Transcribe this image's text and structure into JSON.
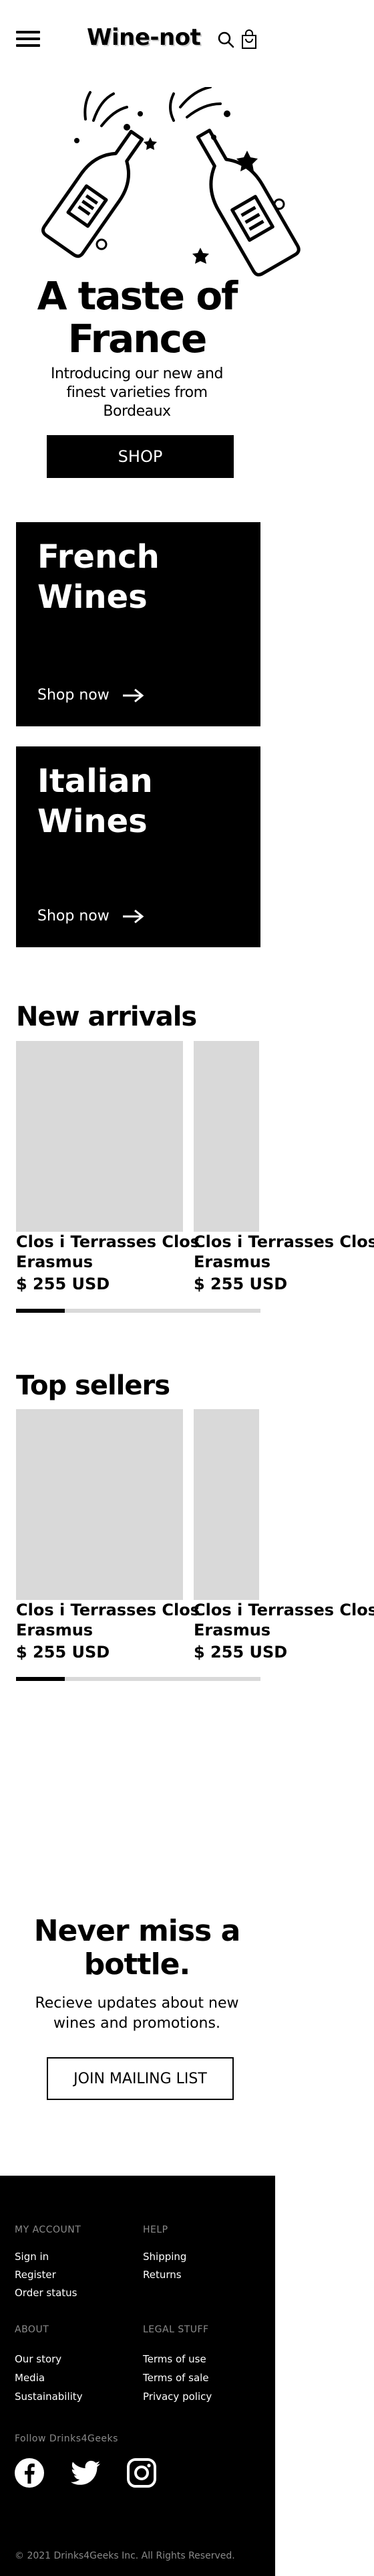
{
  "header": {
    "brand": "Wine-not",
    "menu_icon": "hamburger-menu-icon",
    "search_icon": "search-icon",
    "cart_icon": "shopping-bag-icon"
  },
  "hero": {
    "title_line1": "A taste of",
    "title_line2": "France",
    "subtitle": "Introducing our new and finest varieties from Bordeaux",
    "button": "SHOP"
  },
  "categories": [
    {
      "title_line1": "French",
      "title_line2": "Wines",
      "link": "Shop now"
    },
    {
      "title_line1": "Italian",
      "title_line2": "Wines",
      "link": "Shop now"
    }
  ],
  "new_arrivals": {
    "title": "New arrivals",
    "products": [
      {
        "name_line1": "Clos i Terrasses Clos",
        "name_line2": "Erasmus",
        "price": "$ 255 USD"
      },
      {
        "name_line1": "Clos i Terrasses Clos",
        "name_line2": "Erasmus",
        "price": "$ 255 USD"
      }
    ],
    "scroll_progress": 0.2
  },
  "top_sellers": {
    "title": "Top sellers",
    "products": [
      {
        "name_line1": "Clos i Terrasses Clos",
        "name_line2": "Erasmus",
        "price": "$ 255 USD"
      },
      {
        "name_line1": "Clos i Terrasses Clos",
        "name_line2": "Erasmus",
        "price": "$ 255 USD"
      }
    ],
    "scroll_progress": 0.2
  },
  "newsletter": {
    "title_line1": "Never miss a",
    "title_line2": "bottle.",
    "subtitle": "Recieve updates about new wines and promotions.",
    "button": "JOIN MAILING LIST"
  },
  "footer": {
    "my_account": {
      "heading": "MY ACCOUNT",
      "links": [
        "Sign in",
        "Register",
        "Order status"
      ]
    },
    "help": {
      "heading": "HELP",
      "links": [
        "Shipping",
        "Returns"
      ]
    },
    "about": {
      "heading": "ABOUT",
      "links": [
        "Our story",
        "Media",
        "Sustainability"
      ]
    },
    "legal": {
      "heading": "LEGAL STUFF",
      "links": [
        "Terms of use",
        "Terms of sale",
        "Privacy policy"
      ]
    },
    "follow": "Follow Drinks4Geeks",
    "social_icons": [
      "facebook-icon",
      "twitter-icon",
      "instagram-icon"
    ],
    "copyright": "© 2021 Drinks4Geeks Inc. All Rights Reserved."
  }
}
